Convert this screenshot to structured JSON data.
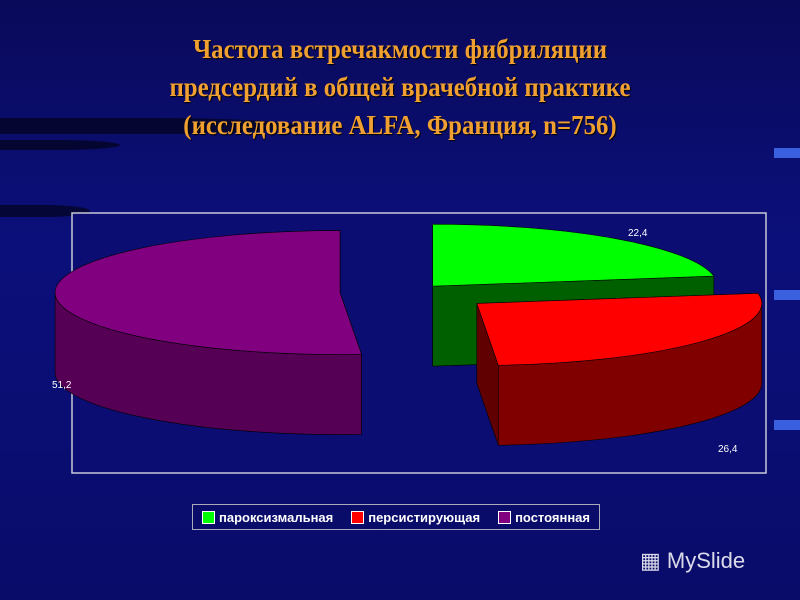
{
  "chart_data": {
    "type": "pie",
    "style": "3d-exploded",
    "title": "Частота встречакмости фибриляции предсердий в общей врачебной практике (исследование ALFA, Франция, n=756)",
    "title_lines": [
      "Частота встречакмости фибриляции",
      "предсердий в общей врачебной практике",
      "(исследование ALFA, Франция, n=756)"
    ],
    "categories": [
      "пароксизмальная",
      "персистирующая",
      "постоянная"
    ],
    "values": [
      22.4,
      26.4,
      51.2
    ],
    "data_labels": [
      "22,4",
      "26,4",
      "51,2"
    ],
    "colors": [
      "#00ff00",
      "#ff0000",
      "#800080"
    ],
    "legend_position": "bottom"
  },
  "watermark": "MySlide"
}
